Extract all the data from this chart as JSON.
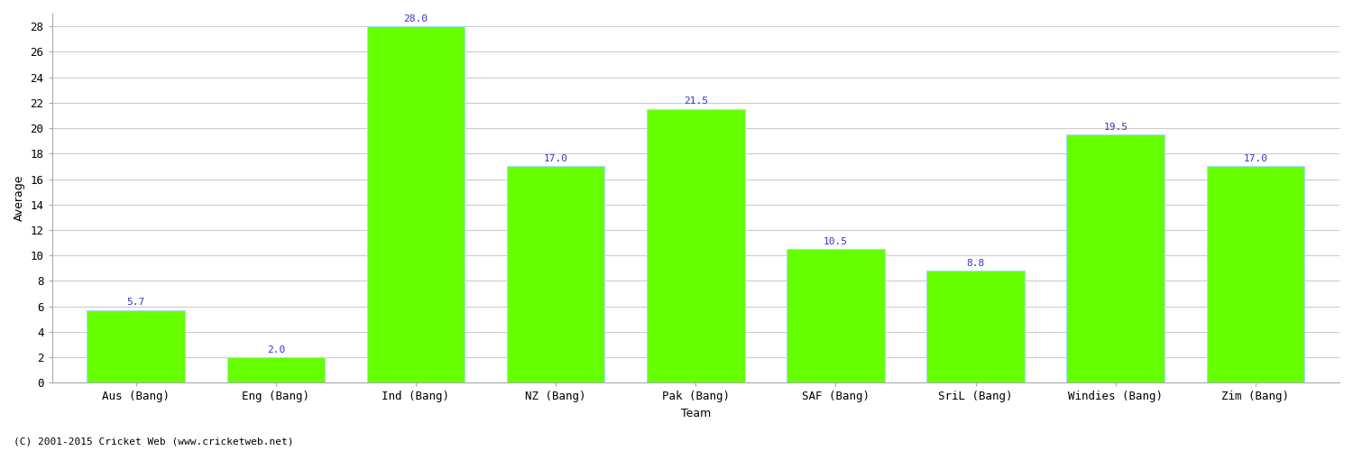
{
  "categories": [
    "Aus (Bang)",
    "Eng (Bang)",
    "Ind (Bang)",
    "NZ (Bang)",
    "Pak (Bang)",
    "SAF (Bang)",
    "SriL (Bang)",
    "Windies (Bang)",
    "Zim (Bang)"
  ],
  "values": [
    5.7,
    2.0,
    28.0,
    17.0,
    21.5,
    10.5,
    8.8,
    19.5,
    17.0
  ],
  "bar_color": "#66ff00",
  "bar_edge_color": "#aaddff",
  "value_color": "#3333cc",
  "xlabel": "Team",
  "ylabel": "Average",
  "ylim": [
    0,
    29
  ],
  "yticks": [
    0,
    2,
    4,
    6,
    8,
    10,
    12,
    14,
    16,
    18,
    20,
    22,
    24,
    26,
    28
  ],
  "grid_color": "#cccccc",
  "background_color": "#ffffff",
  "footer": "(C) 2001-2015 Cricket Web (www.cricketweb.net)",
  "label_fontsize": 9,
  "tick_fontsize": 9,
  "value_fontsize": 8,
  "bar_width": 0.7
}
